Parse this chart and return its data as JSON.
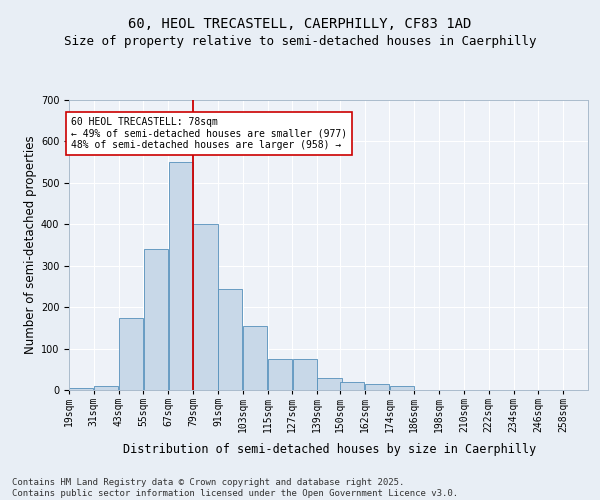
{
  "title_line1": "60, HEOL TRECASTELL, CAERPHILLY, CF83 1AD",
  "title_line2": "Size of property relative to semi-detached houses in Caerphilly",
  "xlabel": "Distribution of semi-detached houses by size in Caerphilly",
  "ylabel": "Number of semi-detached properties",
  "bin_labels": [
    "19sqm",
    "31sqm",
    "43sqm",
    "55sqm",
    "67sqm",
    "79sqm",
    "91sqm",
    "103sqm",
    "115sqm",
    "127sqm",
    "139sqm",
    "150sqm",
    "162sqm",
    "174sqm",
    "186sqm",
    "198sqm",
    "210sqm",
    "222sqm",
    "234sqm",
    "246sqm",
    "258sqm"
  ],
  "bin_edges": [
    19,
    31,
    43,
    55,
    67,
    79,
    91,
    103,
    115,
    127,
    139,
    150,
    162,
    174,
    186,
    198,
    210,
    222,
    234,
    246,
    258
  ],
  "bar_heights": [
    5,
    10,
    175,
    340,
    550,
    400,
    245,
    155,
    75,
    75,
    30,
    20,
    15,
    10,
    0,
    0,
    0,
    0,
    0,
    0
  ],
  "bar_color": "#c8d8e8",
  "bar_edge_color": "#5590bb",
  "vline_x": 79,
  "vline_color": "#cc0000",
  "annotation_text": "60 HEOL TRECASTELL: 78sqm\n← 49% of semi-detached houses are smaller (977)\n48% of semi-detached houses are larger (958) →",
  "annotation_box_color": "#ffffff",
  "annotation_box_edge": "#cc0000",
  "footnote": "Contains HM Land Registry data © Crown copyright and database right 2025.\nContains public sector information licensed under the Open Government Licence v3.0.",
  "bg_color": "#e8eef5",
  "plot_bg_color": "#eef2f8",
  "grid_color": "#ffffff",
  "ylim": [
    0,
    700
  ],
  "yticks": [
    0,
    100,
    200,
    300,
    400,
    500,
    600,
    700
  ],
  "title_fontsize": 10,
  "subtitle_fontsize": 9,
  "axis_label_fontsize": 8.5,
  "tick_fontsize": 7,
  "annotation_fontsize": 7,
  "footnote_fontsize": 6.5
}
